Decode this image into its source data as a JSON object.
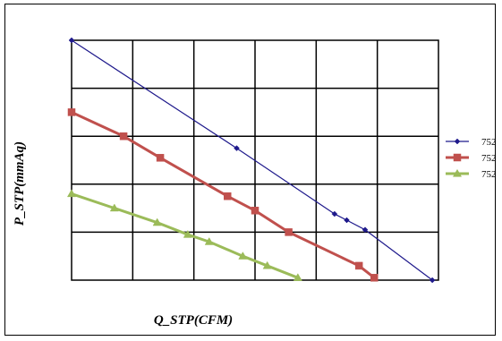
{
  "chart_data": {
    "type": "line",
    "title": "",
    "xlabel": "Q_STP(CFM)",
    "ylabel": "P_STP(mmAq)",
    "xlim": [
      0,
      6
    ],
    "ylim": [
      0,
      5
    ],
    "grid": true,
    "legend_position": "right",
    "series": [
      {
        "name": "752",
        "color": "#1f1a8c",
        "marker": "diamond",
        "x": [
          0.0,
          2.7,
          4.3,
          4.5,
          4.8,
          5.9
        ],
        "y": [
          5.0,
          2.75,
          1.38,
          1.25,
          1.05,
          0.0
        ]
      },
      {
        "name": "752",
        "color": "#c0504d",
        "marker": "square",
        "x": [
          0.0,
          0.85,
          1.45,
          2.55,
          3.0,
          3.55,
          4.7,
          4.95
        ],
        "y": [
          3.5,
          3.0,
          2.55,
          1.75,
          1.45,
          1.0,
          0.3,
          0.05
        ]
      },
      {
        "name": "752",
        "color": "#9bbb59",
        "marker": "triangle",
        "x": [
          0.0,
          0.7,
          1.4,
          1.9,
          2.25,
          2.8,
          3.2,
          3.7
        ],
        "y": [
          1.8,
          1.5,
          1.2,
          0.95,
          0.8,
          0.5,
          0.3,
          0.05
        ]
      }
    ]
  }
}
